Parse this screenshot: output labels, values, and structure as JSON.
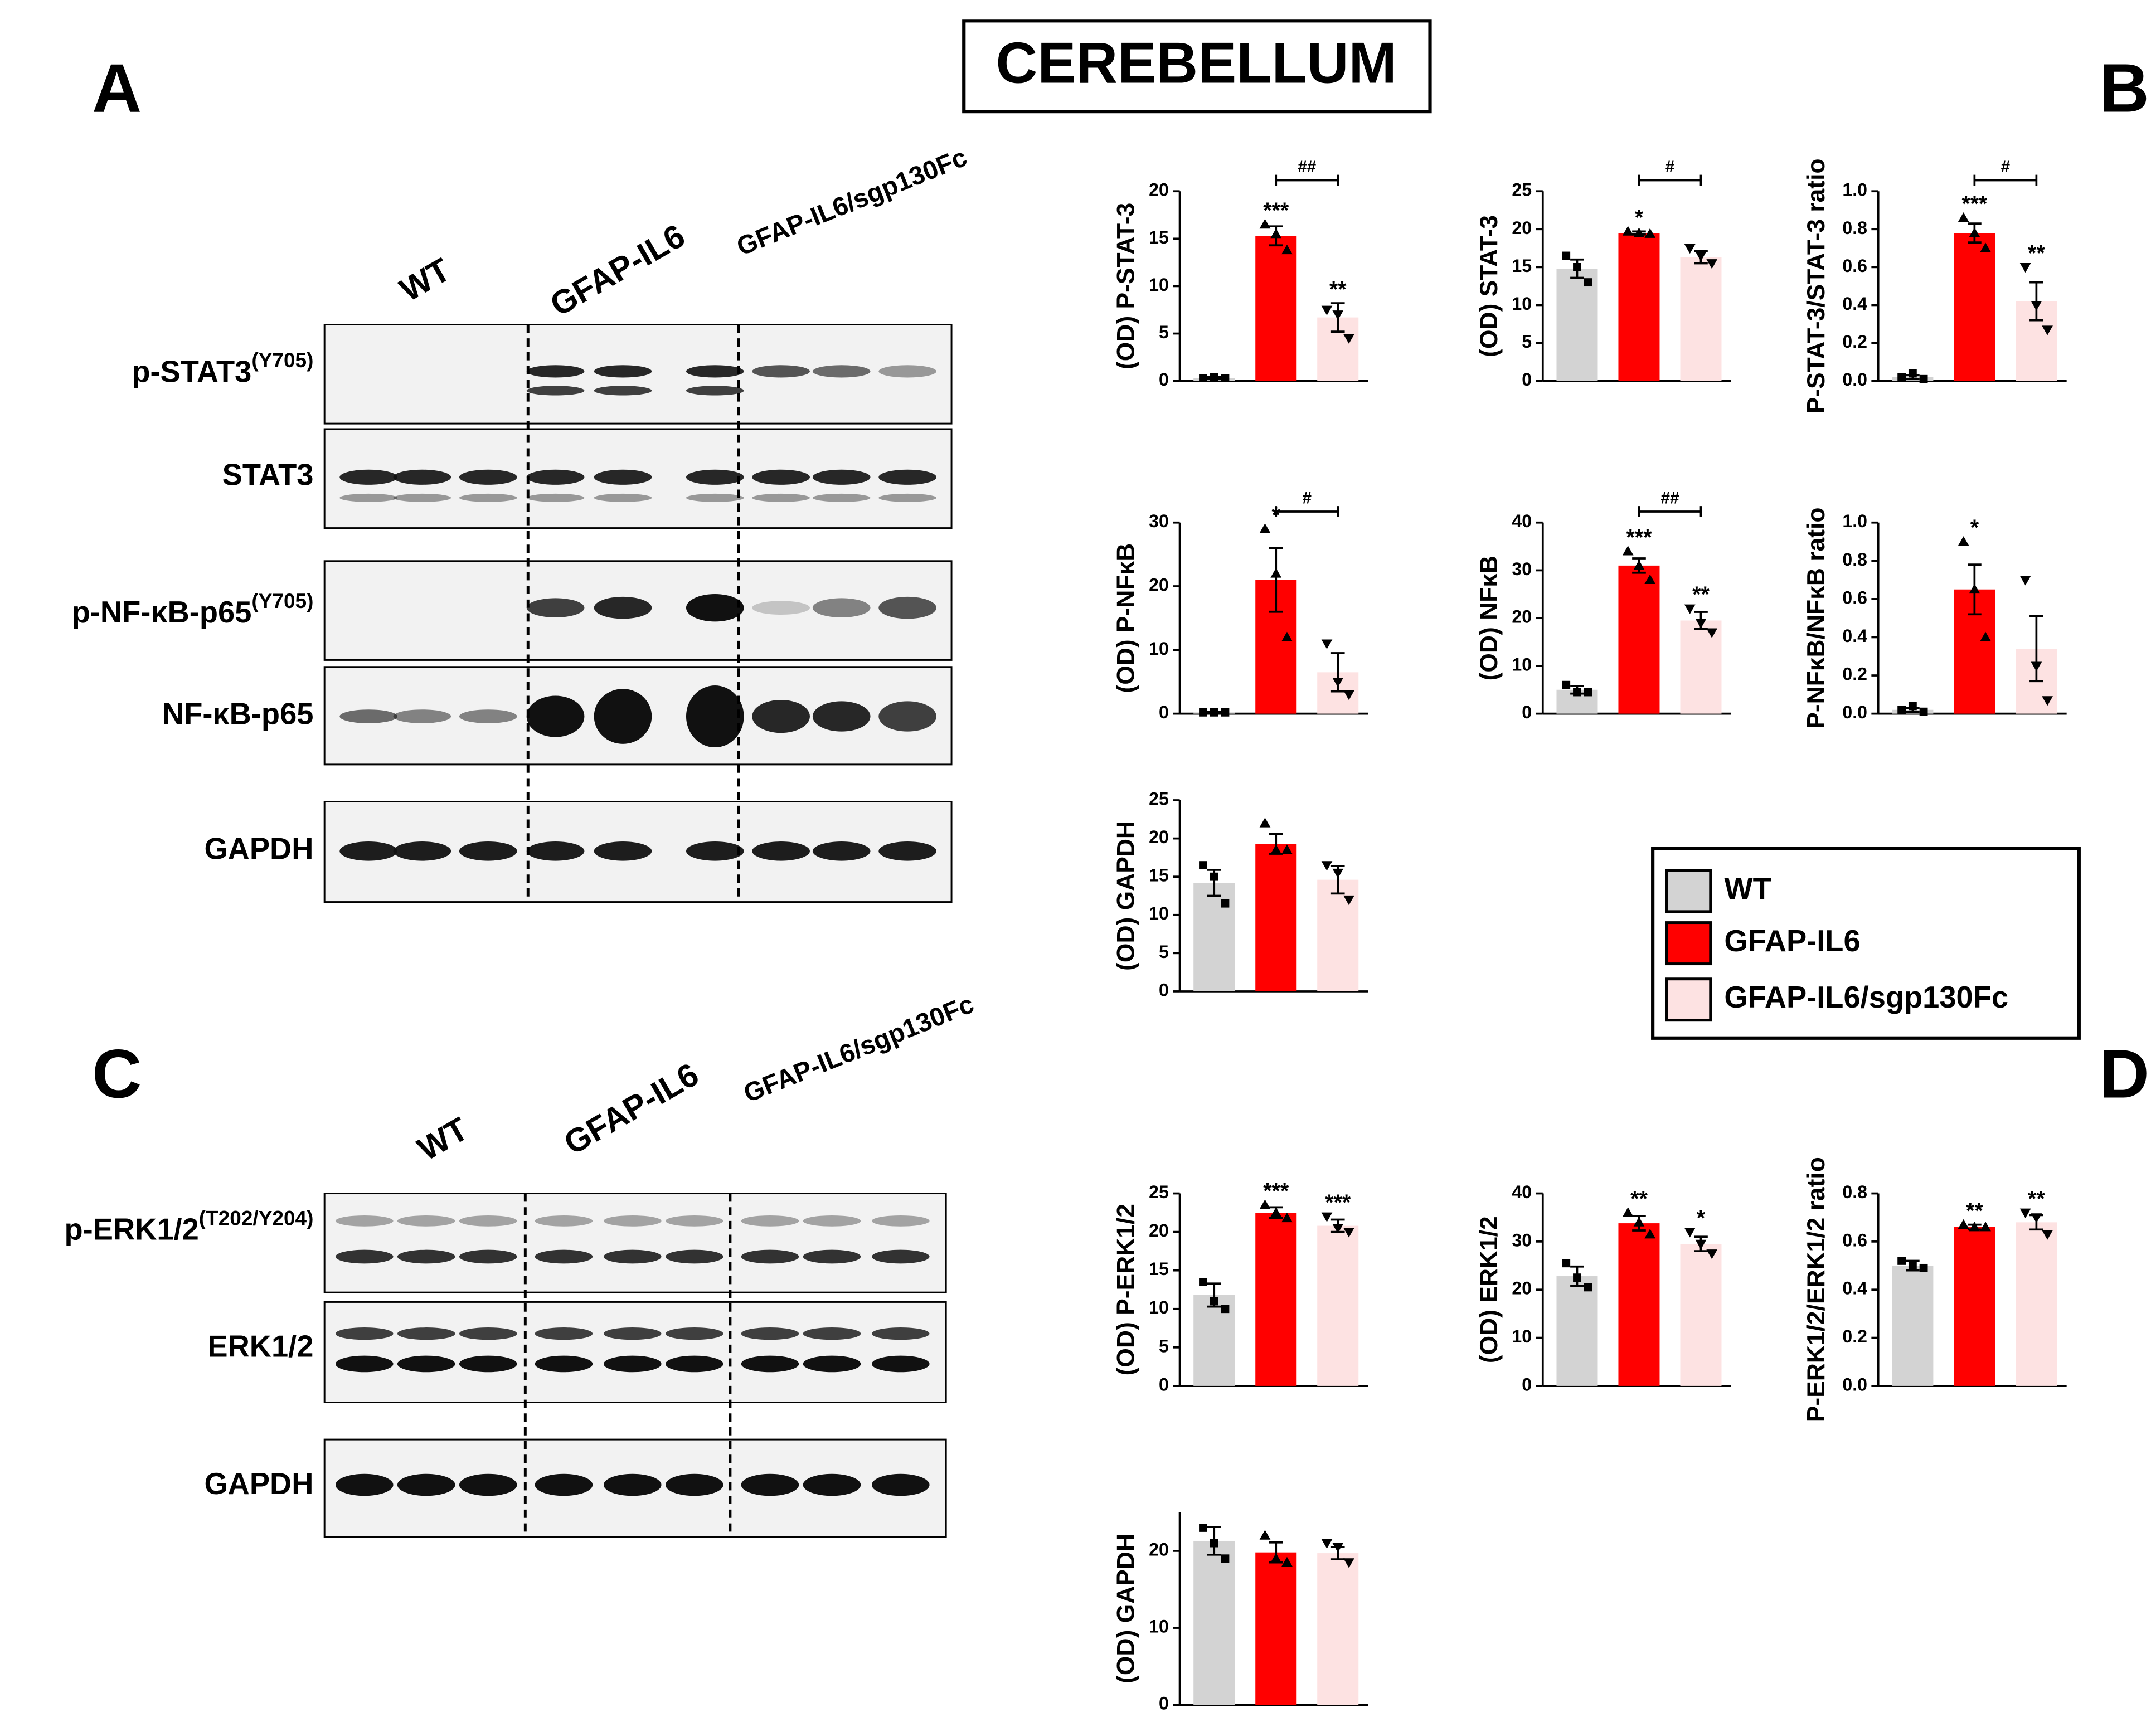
{
  "title": "CEREBELLUM",
  "panels": [
    "A",
    "B",
    "C",
    "D"
  ],
  "blot_groups_top": [
    "WT",
    "GFAP-IL6",
    "GFAP-IL6/sgp130Fc"
  ],
  "blot_groups_bottom": [
    "WT",
    "GFAP-IL6",
    "GFAP-IL6/sgp130Fc"
  ],
  "blot_labels_top": [
    {
      "text": "p-STAT3",
      "sup": "(Y705)"
    },
    {
      "text": "STAT3"
    },
    {
      "text": "p-NF-κB-p65",
      "sup": "(Y705)"
    },
    {
      "text": "NF-κB-p65"
    },
    {
      "text": "GAPDH"
    }
  ],
  "blot_labels_bottom": [
    {
      "text": "p-ERK1/2",
      "sup": "(T202/Y204)"
    },
    {
      "text": "ERK1/2"
    },
    {
      "text": "GAPDH"
    }
  ],
  "legend": [
    {
      "name": "WT",
      "color": "#d3d3d3"
    },
    {
      "name": "GFAP-IL6",
      "color": "#ff0000"
    },
    {
      "name": "GFAP-IL6/sgp130Fc",
      "color": "#fde2e2"
    }
  ],
  "chart_data": [
    {
      "type": "bar",
      "ylabel": "(OD) P-STAT-3",
      "ylim": [
        0,
        20
      ],
      "yticks": [
        0,
        5,
        10,
        15,
        20
      ],
      "values": [
        0.3,
        15.3,
        6.7
      ],
      "errors": [
        0.1,
        1.0,
        1.5
      ],
      "points": [
        [
          0.3,
          0.4,
          0.3
        ],
        [
          16.5,
          15.5,
          13.8
        ],
        [
          7.5,
          7,
          4.5
        ]
      ],
      "stars": [
        null,
        "***",
        "**"
      ],
      "bracket": "##"
    },
    {
      "type": "bar",
      "ylabel": "(OD) STAT-3",
      "ylim": [
        0,
        25
      ],
      "yticks": [
        0,
        5,
        10,
        15,
        20,
        25
      ],
      "values": [
        14.8,
        19.5,
        16.3
      ],
      "errors": [
        1.2,
        0.2,
        0.8
      ],
      "points": [
        [
          16.5,
          15,
          13
        ],
        [
          19.7,
          19.5,
          19.4
        ],
        [
          17.5,
          16.5,
          15.5
        ]
      ],
      "stars": [
        null,
        "*",
        null
      ],
      "bracket": "#"
    },
    {
      "type": "bar",
      "ylabel": "P-STAT-3/STAT-3 ratio",
      "ylim": [
        0,
        1
      ],
      "yticks": [
        {
          "value": 0,
          "label": "0.0"
        },
        {
          "value": 0.2,
          "label": "0.2"
        },
        {
          "value": 0.4,
          "label": "0.4"
        },
        {
          "value": 0.6,
          "label": "0.6"
        },
        {
          "value": 0.8,
          "label": "0.8"
        },
        {
          "value": 1,
          "label": "1.0"
        }
      ],
      "values": [
        0.02,
        0.78,
        0.42
      ],
      "errors": [
        0.01,
        0.05,
        0.1
      ],
      "points": [
        [
          0.02,
          0.04,
          0.01
        ],
        [
          0.86,
          0.78,
          0.7
        ],
        [
          0.6,
          0.4,
          0.27
        ]
      ],
      "stars": [
        null,
        "***",
        "**"
      ],
      "bracket": "#"
    },
    {
      "type": "bar",
      "ylabel": "(OD) P-NFκB",
      "ylim": [
        0,
        30
      ],
      "yticks": [
        0,
        10,
        20,
        30
      ],
      "values": [
        0.2,
        21,
        6.5
      ],
      "errors": [
        0.1,
        5,
        3
      ],
      "points": [
        [
          0.2,
          0.2,
          0.2
        ],
        [
          29,
          22,
          12
        ],
        [
          11,
          5,
          3
        ]
      ],
      "stars": [
        null,
        "*",
        null
      ],
      "bracket": "#"
    },
    {
      "type": "bar",
      "ylabel": "(OD) NFκB",
      "ylim": [
        0,
        40
      ],
      "yticks": [
        0,
        10,
        20,
        30,
        40
      ],
      "values": [
        5,
        31,
        19.5
      ],
      "errors": [
        0.8,
        1.5,
        1.8
      ],
      "points": [
        [
          6,
          4.5,
          4.5
        ],
        [
          34,
          31,
          28
        ],
        [
          22,
          19,
          17
        ]
      ],
      "stars": [
        null,
        "***",
        "**"
      ],
      "bracket": "##"
    },
    {
      "type": "bar",
      "ylabel": "P-NFκB/NFκB ratio",
      "ylim": [
        0,
        1
      ],
      "yticks": [
        {
          "value": 0,
          "label": "0.0"
        },
        {
          "value": 0.2,
          "label": "0.2"
        },
        {
          "value": 0.4,
          "label": "0.4"
        },
        {
          "value": 0.6,
          "label": "0.6"
        },
        {
          "value": 0.8,
          "label": "0.8"
        },
        {
          "value": 1,
          "label": "1.0"
        }
      ],
      "values": [
        0.02,
        0.65,
        0.34
      ],
      "errors": [
        0.01,
        0.13,
        0.17
      ],
      "points": [
        [
          0.02,
          0.04,
          0.01
        ],
        [
          0.9,
          0.65,
          0.4
        ],
        [
          0.7,
          0.25,
          0.07
        ]
      ],
      "stars": [
        null,
        "*",
        null
      ]
    },
    {
      "type": "bar",
      "ylabel": "(OD) GAPDH",
      "ylim": [
        0,
        25
      ],
      "yticks": [
        0,
        5,
        10,
        15,
        20,
        25
      ],
      "values": [
        14.2,
        19.3,
        14.6
      ],
      "errors": [
        1.7,
        1.3,
        1.8
      ],
      "points": [
        [
          16.5,
          15,
          11.5
        ],
        [
          22,
          18.5,
          18.5
        ],
        [
          16.5,
          15.5,
          12
        ]
      ]
    },
    {
      "type": "bar",
      "ylabel": "(OD) P-ERK1/2",
      "ylim": [
        0,
        25
      ],
      "yticks": [
        0,
        5,
        10,
        15,
        20,
        25
      ],
      "values": [
        11.8,
        22.5,
        20.8
      ],
      "errors": [
        1.5,
        0.7,
        0.8
      ],
      "points": [
        [
          13.5,
          11,
          10
        ],
        [
          23.5,
          22.5,
          21.8
        ],
        [
          22,
          20.5,
          20
        ]
      ],
      "stars": [
        null,
        "***",
        "***"
      ]
    },
    {
      "type": "bar",
      "ylabel": "(OD) ERK1/2",
      "ylim": [
        0,
        40
      ],
      "yticks": [
        0,
        10,
        20,
        30,
        40
      ],
      "values": [
        22.8,
        33.8,
        29.5
      ],
      "errors": [
        2,
        1.5,
        1.5
      ],
      "points": [
        [
          25.5,
          22.5,
          20.5
        ],
        [
          36,
          34,
          31.5
        ],
        [
          32,
          29.5,
          27.5
        ]
      ],
      "stars": [
        null,
        "**",
        "*"
      ]
    },
    {
      "type": "bar",
      "ylabel": "P-ERK1/2/ERK1/2 ratio",
      "ylim": [
        0,
        0.8
      ],
      "yticks": [
        {
          "value": 0,
          "label": "0.0"
        },
        {
          "value": 0.2,
          "label": "0.2"
        },
        {
          "value": 0.4,
          "label": "0.4"
        },
        {
          "value": 0.6,
          "label": "0.6"
        },
        {
          "value": 0.8,
          "label": "0.8"
        }
      ],
      "values": [
        0.5,
        0.66,
        0.68
      ],
      "errors": [
        0.02,
        0.01,
        0.03
      ],
      "points": [
        [
          0.52,
          0.5,
          0.49
        ],
        [
          0.67,
          0.66,
          0.66
        ],
        [
          0.72,
          0.7,
          0.63
        ]
      ],
      "stars": [
        null,
        "**",
        "**"
      ]
    },
    {
      "type": "bar",
      "ylabel": "(OD) GAPDH",
      "ylim": [
        0,
        25
      ],
      "yticks": [
        0,
        10,
        20
      ],
      "values": [
        21.3,
        19.8,
        19.7
      ],
      "errors": [
        1.8,
        1.3,
        0.8
      ],
      "points": [
        [
          23,
          21,
          19
        ],
        [
          22,
          19,
          18.5
        ],
        [
          21,
          20.5,
          18.5
        ]
      ]
    }
  ]
}
